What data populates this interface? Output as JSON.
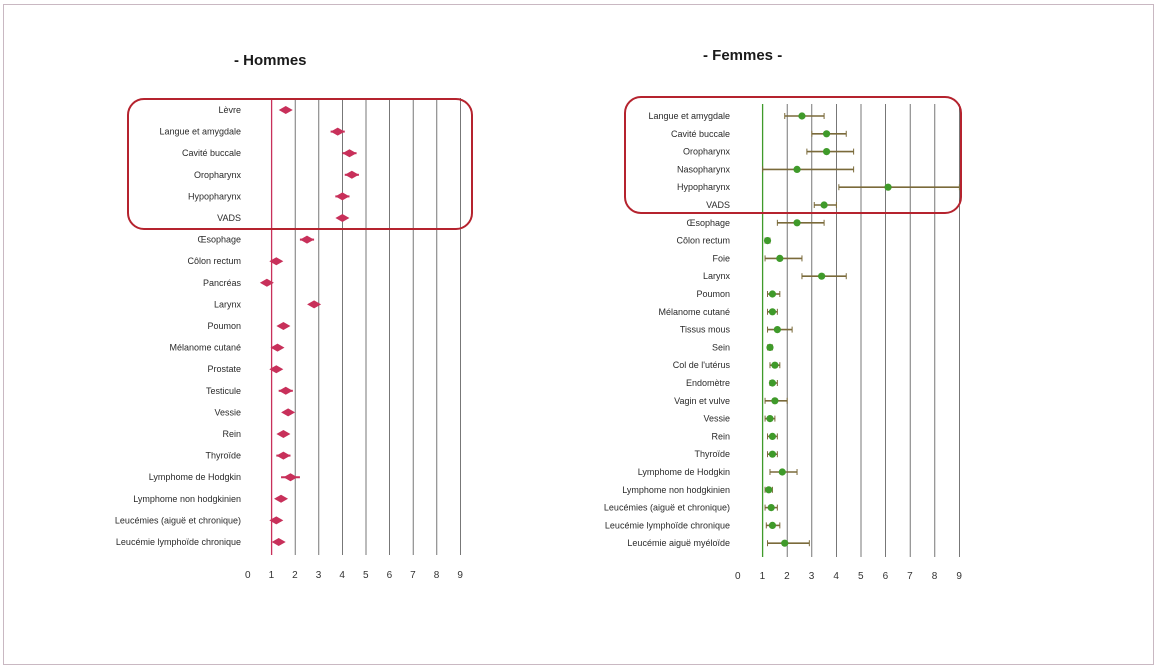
{
  "colors": {
    "men": "#c8305a",
    "women_point": "#3f9a2a",
    "women_bar": "#7a6a3a",
    "highlight_box": "#b5232e",
    "grid": "#555555"
  },
  "chart_data": [
    {
      "type": "scatter",
      "title": "- Hommes",
      "xlim": [
        0,
        9
      ],
      "xticks": [
        "0",
        "1",
        "2",
        "3",
        "4",
        "5",
        "6",
        "7",
        "8",
        "9"
      ],
      "grid": true,
      "reference_line": 1,
      "highlighted_categories": [
        "Lèvre",
        "Langue et amygdale",
        "Cavité buccale",
        "Oropharynx",
        "Hypopharynx",
        "VADS"
      ],
      "categories": [
        "Lèvre",
        "Langue et amygdale",
        "Cavité buccale",
        "Oropharynx",
        "Hypopharynx",
        "VADS",
        "Œsophage",
        "Côlon rectum",
        "Pancréas",
        "Larynx",
        "Poumon",
        "Mélanome cutané",
        "Prostate",
        "Testicule",
        "Vessie",
        "Rein",
        "Thyroïde",
        "Lymphome de Hodgkin",
        "Lymphome non hodgkinien",
        "Leucémies (aiguë et chronique)",
        "Leucémie lymphoïde chronique"
      ],
      "points": [
        {
          "value": 1.6,
          "low": 1.4,
          "high": 1.8
        },
        {
          "value": 3.8,
          "low": 3.5,
          "high": 4.1
        },
        {
          "value": 4.3,
          "low": 4.0,
          "high": 4.6
        },
        {
          "value": 4.4,
          "low": 4.1,
          "high": 4.7
        },
        {
          "value": 4.0,
          "low": 3.7,
          "high": 4.3
        },
        {
          "value": 4.0,
          "low": 3.85,
          "high": 4.15
        },
        {
          "value": 2.5,
          "low": 2.2,
          "high": 2.8
        },
        {
          "value": 1.2,
          "low": 1.1,
          "high": 1.3
        },
        {
          "value": 0.8,
          "low": 0.6,
          "high": 1.0
        },
        {
          "value": 2.8,
          "low": 2.6,
          "high": 3.0
        },
        {
          "value": 1.5,
          "low": 1.4,
          "high": 1.6
        },
        {
          "value": 1.25,
          "low": 1.15,
          "high": 1.35
        },
        {
          "value": 1.2,
          "low": 1.1,
          "high": 1.3
        },
        {
          "value": 1.6,
          "low": 1.3,
          "high": 1.9
        },
        {
          "value": 1.7,
          "low": 1.6,
          "high": 1.8
        },
        {
          "value": 1.5,
          "low": 1.4,
          "high": 1.6
        },
        {
          "value": 1.5,
          "low": 1.2,
          "high": 1.8
        },
        {
          "value": 1.8,
          "low": 1.4,
          "high": 2.2
        },
        {
          "value": 1.4,
          "low": 1.3,
          "high": 1.5
        },
        {
          "value": 1.2,
          "low": 1.05,
          "high": 1.35
        },
        {
          "value": 1.3,
          "low": 1.2,
          "high": 1.4
        }
      ]
    },
    {
      "type": "scatter",
      "title": "- Femmes -",
      "xlim": [
        0,
        9
      ],
      "xticks": [
        "0",
        "1",
        "2",
        "3",
        "4",
        "5",
        "6",
        "7",
        "8",
        "9"
      ],
      "grid": true,
      "reference_line": 1,
      "highlighted_categories": [
        "Langue et amygdale",
        "Cavité buccale",
        "Oropharynx",
        "Nasopharynx",
        "Hypopharynx",
        "VADS"
      ],
      "categories": [
        "Langue et amygdale",
        "Cavité buccale",
        "Oropharynx",
        "Nasopharynx",
        "Hypopharynx",
        "VADS",
        "Œsophage",
        "Côlon rectum",
        "Foie",
        "Larynx",
        "Poumon",
        "Mélanome cutané",
        "Tissus mous",
        "Sein",
        "Col de l'utérus",
        "Endomètre",
        "Vagin et vulve",
        "Vessie",
        "Rein",
        "Thyroïde",
        "Lymphome de Hodgkin",
        "Lymphome non hodgkinien",
        "Leucémies (aiguë et chronique)",
        "Leucémie lymphoïde chronique",
        "Leucémie aiguë myéloïde"
      ],
      "points": [
        {
          "value": 2.6,
          "low": 1.9,
          "high": 3.5
        },
        {
          "value": 3.6,
          "low": 3.0,
          "high": 4.4
        },
        {
          "value": 3.6,
          "low": 2.8,
          "high": 4.7
        },
        {
          "value": 2.4,
          "low": 1.0,
          "high": 4.7
        },
        {
          "value": 6.1,
          "low": 4.1,
          "high": 9.0
        },
        {
          "value": 3.5,
          "low": 3.1,
          "high": 4.0
        },
        {
          "value": 2.4,
          "low": 1.6,
          "high": 3.5
        },
        {
          "value": 1.2,
          "low": 1.1,
          "high": 1.3
        },
        {
          "value": 1.7,
          "low": 1.1,
          "high": 2.6
        },
        {
          "value": 3.4,
          "low": 2.6,
          "high": 4.4
        },
        {
          "value": 1.4,
          "low": 1.2,
          "high": 1.7
        },
        {
          "value": 1.4,
          "low": 1.2,
          "high": 1.6
        },
        {
          "value": 1.6,
          "low": 1.2,
          "high": 2.2
        },
        {
          "value": 1.3,
          "low": 1.2,
          "high": 1.4
        },
        {
          "value": 1.5,
          "low": 1.3,
          "high": 1.7
        },
        {
          "value": 1.4,
          "low": 1.3,
          "high": 1.6
        },
        {
          "value": 1.5,
          "low": 1.1,
          "high": 2.0
        },
        {
          "value": 1.3,
          "low": 1.1,
          "high": 1.5
        },
        {
          "value": 1.4,
          "low": 1.2,
          "high": 1.6
        },
        {
          "value": 1.4,
          "low": 1.2,
          "high": 1.6
        },
        {
          "value": 1.8,
          "low": 1.3,
          "high": 2.4
        },
        {
          "value": 1.25,
          "low": 1.1,
          "high": 1.4
        },
        {
          "value": 1.35,
          "low": 1.1,
          "high": 1.6
        },
        {
          "value": 1.4,
          "low": 1.15,
          "high": 1.7
        },
        {
          "value": 1.9,
          "low": 1.2,
          "high": 2.9
        }
      ]
    }
  ]
}
